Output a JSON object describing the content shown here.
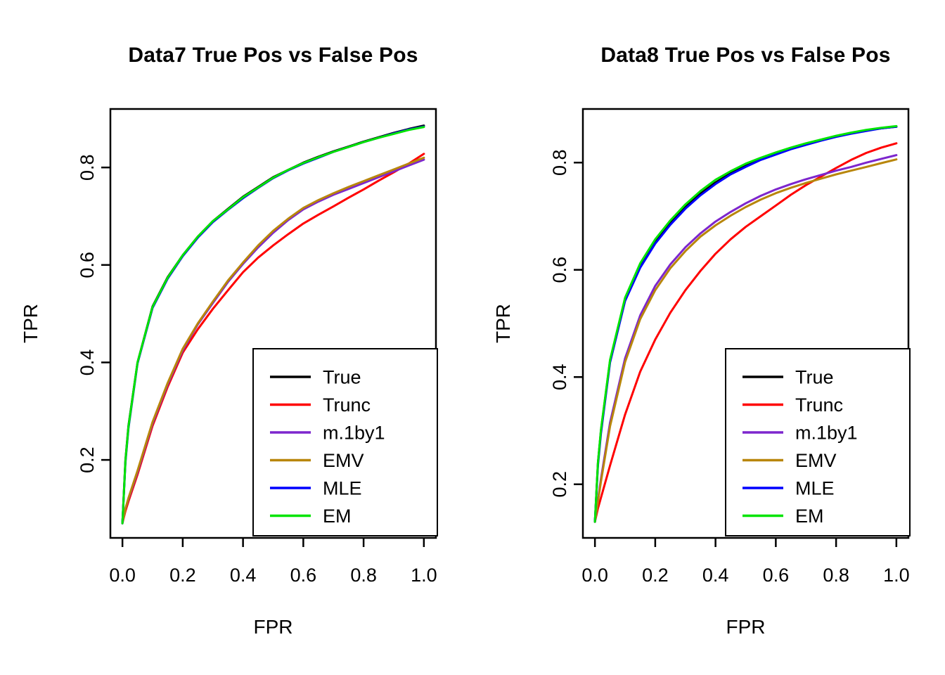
{
  "chart_data": [
    {
      "type": "line",
      "title": "Data7 True Pos vs False Pos",
      "xlabel": "FPR",
      "ylabel": "TPR",
      "xlim": [
        0,
        1
      ],
      "ylim": [
        0.04,
        0.92
      ],
      "xticks": [
        0,
        0.2,
        0.4,
        0.6,
        0.8,
        1
      ],
      "yticks": [
        0.2,
        0.4,
        0.6,
        0.8
      ],
      "grid": false,
      "legend": {
        "position": "bottom-right",
        "entries": [
          "True",
          "Trunc",
          "m.1by1",
          "EMV",
          "MLE",
          "EM"
        ]
      },
      "x": [
        0,
        0.01,
        0.02,
        0.05,
        0.1,
        0.15,
        0.2,
        0.25,
        0.3,
        0.35,
        0.4,
        0.45,
        0.5,
        0.55,
        0.6,
        0.65,
        0.7,
        0.75,
        0.8,
        0.85,
        0.9,
        0.95,
        1.0
      ],
      "series": [
        {
          "name": "True",
          "color": "#000000",
          "values": [
            0.07,
            0.2,
            0.27,
            0.4,
            0.515,
            0.575,
            0.62,
            0.658,
            0.69,
            0.715,
            0.74,
            0.76,
            0.78,
            0.795,
            0.81,
            0.822,
            0.833,
            0.843,
            0.853,
            0.862,
            0.871,
            0.879,
            0.886
          ]
        },
        {
          "name": "Trunc",
          "color": "#FF0000",
          "values": [
            0.07,
            0.095,
            0.115,
            0.17,
            0.27,
            0.35,
            0.42,
            0.468,
            0.51,
            0.548,
            0.585,
            0.615,
            0.64,
            0.663,
            0.685,
            0.703,
            0.72,
            0.738,
            0.755,
            0.773,
            0.79,
            0.808,
            0.828
          ]
        },
        {
          "name": "m.1by1",
          "color": "#7D26CD",
          "values": [
            0.07,
            0.1,
            0.12,
            0.175,
            0.275,
            0.355,
            0.425,
            0.478,
            0.522,
            0.565,
            0.602,
            0.636,
            0.666,
            0.692,
            0.714,
            0.73,
            0.744,
            0.756,
            0.768,
            0.78,
            0.792,
            0.804,
            0.816
          ]
        },
        {
          "name": "EMV",
          "color": "#B8860B",
          "values": [
            0.07,
            0.1,
            0.122,
            0.178,
            0.278,
            0.358,
            0.428,
            0.48,
            0.525,
            0.568,
            0.605,
            0.64,
            0.67,
            0.695,
            0.717,
            0.733,
            0.747,
            0.76,
            0.772,
            0.784,
            0.796,
            0.808,
            0.82
          ]
        },
        {
          "name": "MLE",
          "color": "#0000FF",
          "values": [
            0.07,
            0.195,
            0.265,
            0.398,
            0.512,
            0.572,
            0.618,
            0.656,
            0.688,
            0.713,
            0.737,
            0.758,
            0.778,
            0.794,
            0.808,
            0.82,
            0.832,
            0.842,
            0.852,
            0.861,
            0.87,
            0.878,
            0.884
          ]
        },
        {
          "name": "EM",
          "color": "#00E400",
          "values": [
            0.07,
            0.198,
            0.268,
            0.4,
            0.514,
            0.574,
            0.62,
            0.658,
            0.69,
            0.714,
            0.739,
            0.759,
            0.779,
            0.795,
            0.809,
            0.821,
            0.832,
            0.842,
            0.852,
            0.861,
            0.869,
            0.877,
            0.883
          ]
        }
      ]
    },
    {
      "type": "line",
      "title": "Data8 True Pos vs False Pos",
      "xlabel": "FPR",
      "ylabel": "TPR",
      "xlim": [
        0,
        1
      ],
      "ylim": [
        0.1,
        0.9
      ],
      "xticks": [
        0,
        0.2,
        0.4,
        0.6,
        0.8,
        1
      ],
      "yticks": [
        0.2,
        0.4,
        0.6,
        0.8
      ],
      "grid": false,
      "legend": {
        "position": "bottom-right",
        "entries": [
          "True",
          "Trunc",
          "m.1by1",
          "EMV",
          "MLE",
          "EM"
        ]
      },
      "x": [
        0,
        0.01,
        0.02,
        0.05,
        0.1,
        0.15,
        0.2,
        0.25,
        0.3,
        0.35,
        0.4,
        0.45,
        0.5,
        0.55,
        0.6,
        0.65,
        0.7,
        0.75,
        0.8,
        0.85,
        0.9,
        0.95,
        1.0
      ],
      "series": [
        {
          "name": "True",
          "color": "#000000",
          "values": [
            0.13,
            0.24,
            0.3,
            0.43,
            0.545,
            0.607,
            0.652,
            0.687,
            0.717,
            0.742,
            0.763,
            0.78,
            0.794,
            0.806,
            0.817,
            0.826,
            0.834,
            0.842,
            0.849,
            0.855,
            0.86,
            0.864,
            0.867
          ]
        },
        {
          "name": "Trunc",
          "color": "#FF0000",
          "values": [
            0.13,
            0.155,
            0.175,
            0.235,
            0.33,
            0.41,
            0.47,
            0.52,
            0.562,
            0.598,
            0.63,
            0.657,
            0.68,
            0.7,
            0.72,
            0.74,
            0.758,
            0.774,
            0.79,
            0.805,
            0.818,
            0.828,
            0.836
          ]
        },
        {
          "name": "m.1by1",
          "color": "#7D26CD",
          "values": [
            0.13,
            0.17,
            0.21,
            0.315,
            0.435,
            0.515,
            0.57,
            0.61,
            0.642,
            0.668,
            0.69,
            0.708,
            0.724,
            0.738,
            0.75,
            0.76,
            0.769,
            0.777,
            0.785,
            0.792,
            0.8,
            0.807,
            0.814
          ]
        },
        {
          "name": "EMV",
          "color": "#B8860B",
          "values": [
            0.13,
            0.168,
            0.205,
            0.308,
            0.428,
            0.508,
            0.562,
            0.603,
            0.635,
            0.662,
            0.683,
            0.701,
            0.717,
            0.731,
            0.743,
            0.753,
            0.762,
            0.77,
            0.778,
            0.785,
            0.792,
            0.799,
            0.806
          ]
        },
        {
          "name": "MLE",
          "color": "#0000FF",
          "values": [
            0.13,
            0.235,
            0.295,
            0.427,
            0.542,
            0.604,
            0.649,
            0.684,
            0.714,
            0.739,
            0.76,
            0.778,
            0.792,
            0.805,
            0.815,
            0.825,
            0.833,
            0.841,
            0.848,
            0.854,
            0.859,
            0.864,
            0.867
          ]
        },
        {
          "name": "EM",
          "color": "#00E400",
          "values": [
            0.13,
            0.24,
            0.302,
            0.432,
            0.548,
            0.612,
            0.657,
            0.692,
            0.722,
            0.747,
            0.768,
            0.784,
            0.798,
            0.809,
            0.819,
            0.828,
            0.836,
            0.843,
            0.85,
            0.856,
            0.861,
            0.865,
            0.868
          ]
        }
      ]
    }
  ]
}
